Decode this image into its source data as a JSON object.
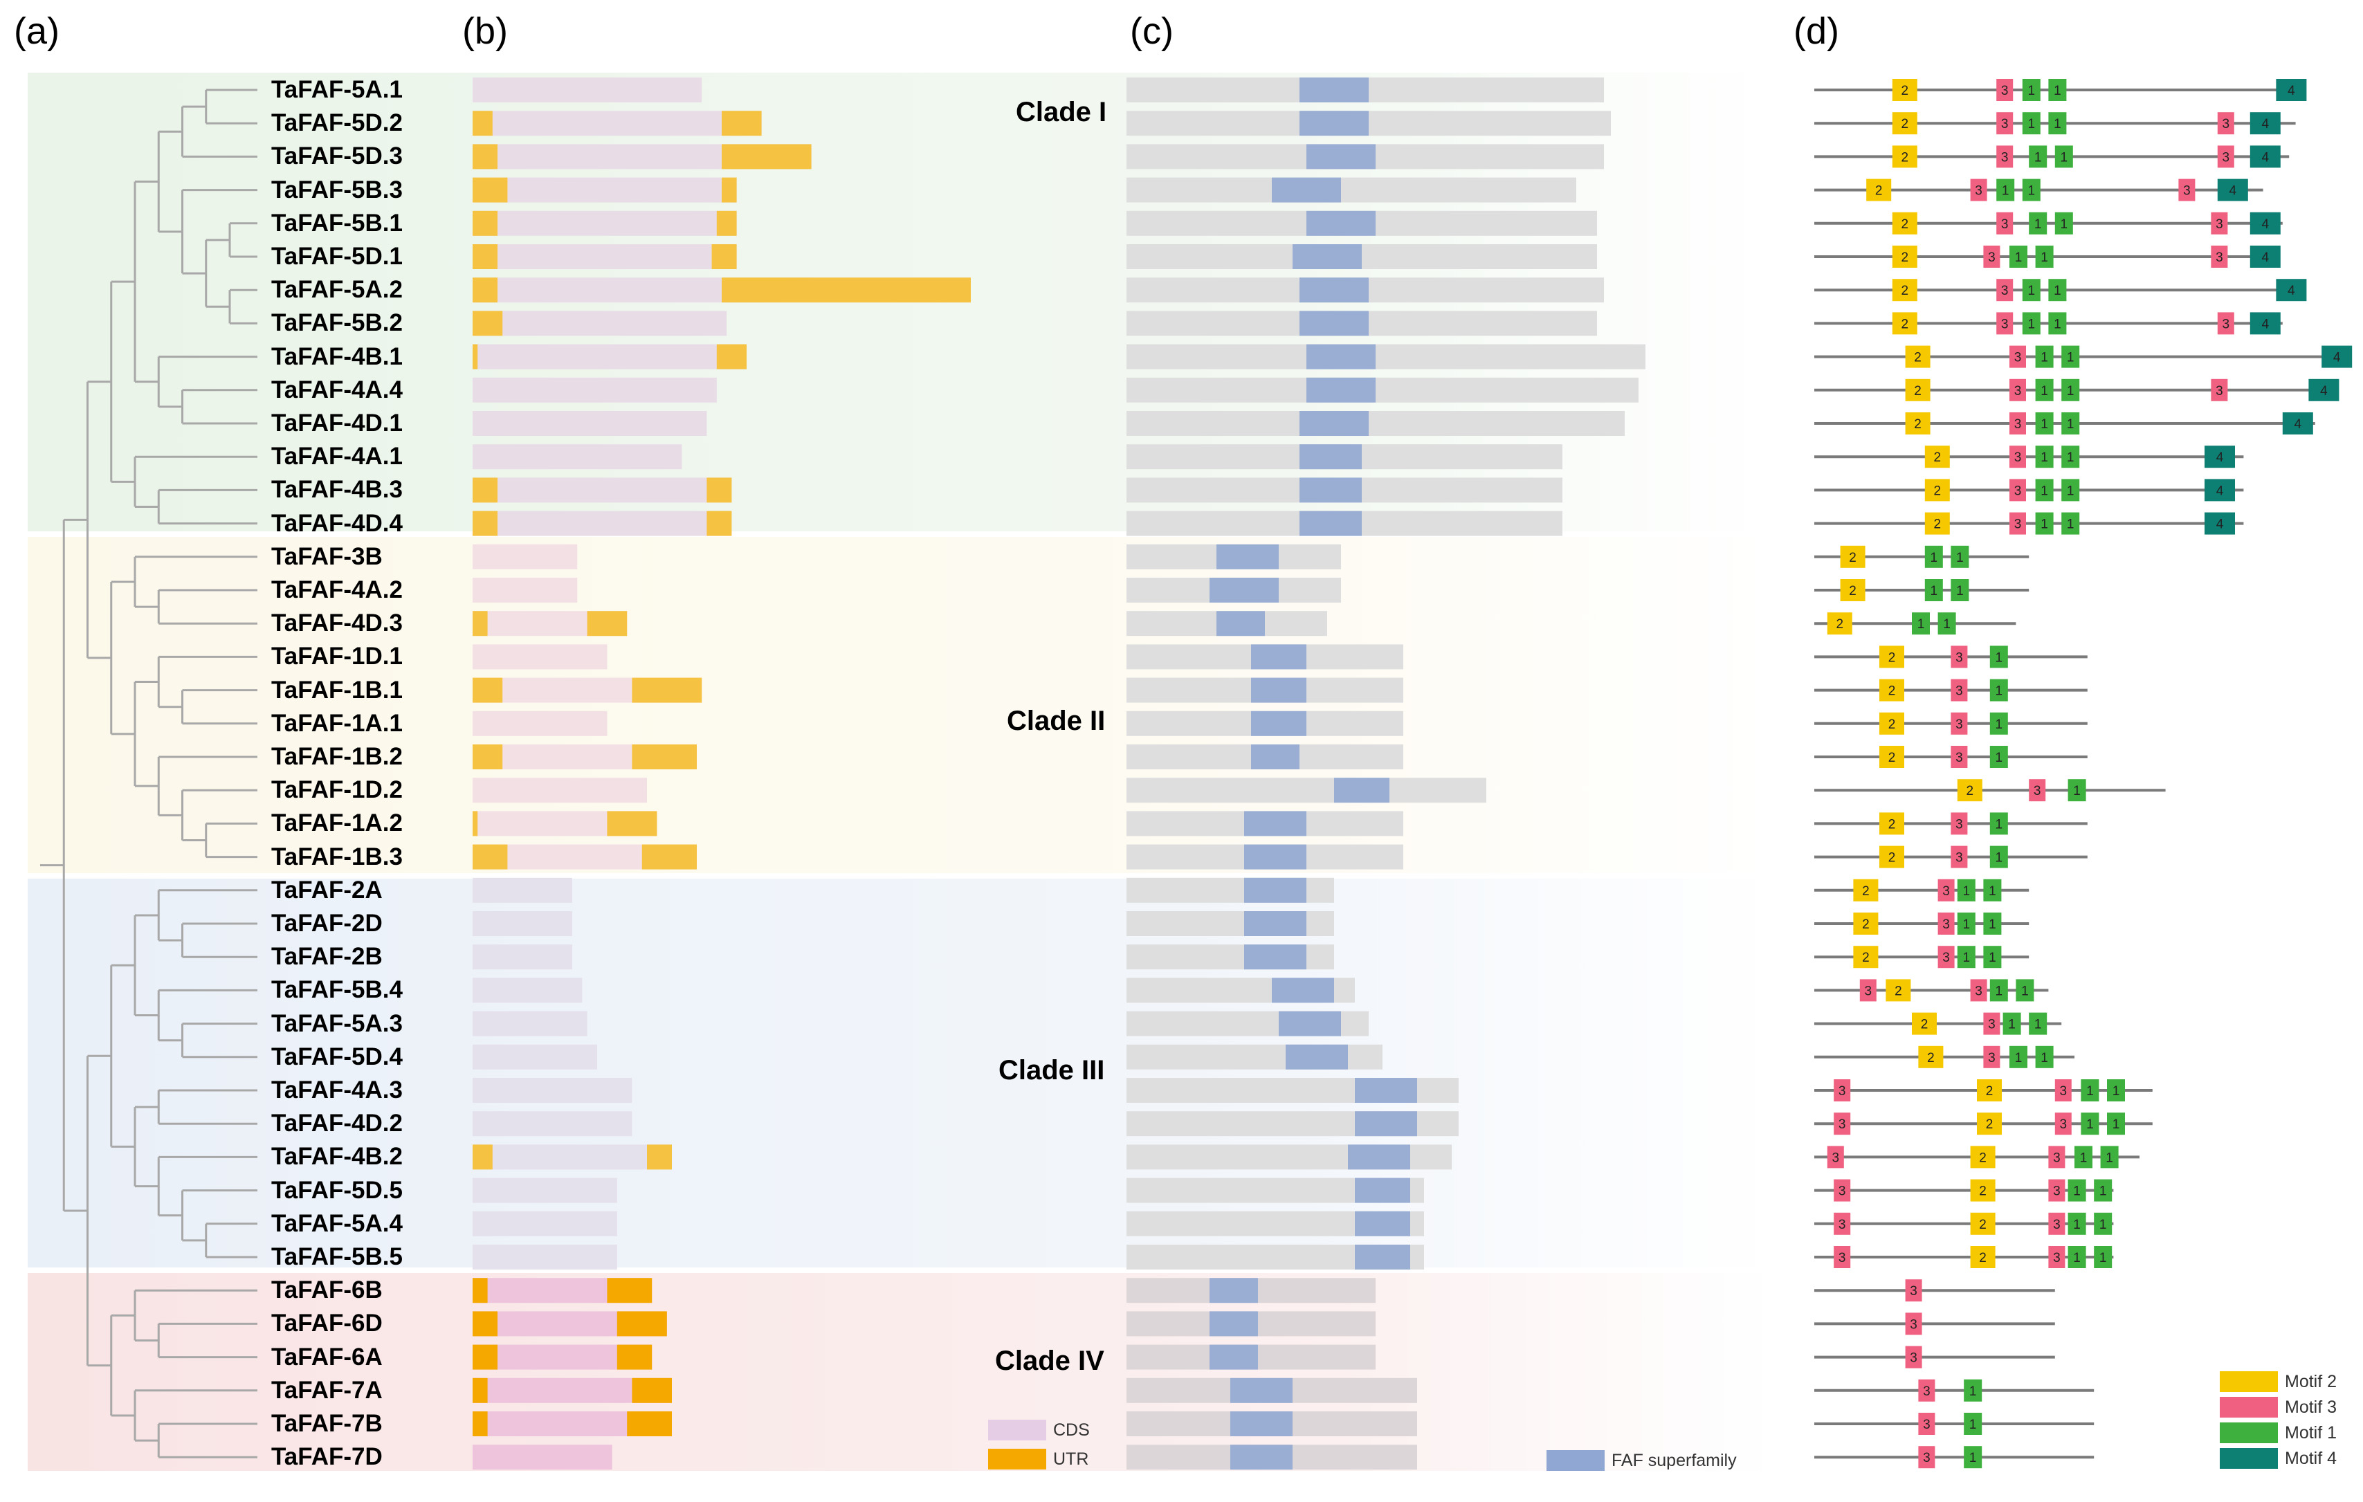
{
  "panels": {
    "a": "(a)",
    "b": "(b)",
    "c": "(c)",
    "d": "(d)"
  },
  "clades": [
    {
      "name": "Clade I",
      "color": "#eaf4e8"
    },
    {
      "name": "Clade II",
      "color": "#fcf8ea"
    },
    {
      "name": "Clade III",
      "color": "#eaf0f8"
    },
    {
      "name": "Clade IV",
      "color": "#f9e4e4"
    }
  ],
  "genes": [
    {
      "name": "TaFAF-5A.1",
      "clade": 0,
      "len": 46,
      "utr5": 0,
      "utr3": 0,
      "prot": 69,
      "dom": [
        25,
        35
      ],
      "motifs": [
        [
          "2",
          12
        ],
        [
          "3",
          28
        ],
        [
          "1",
          32
        ],
        [
          "1",
          36
        ],
        [
          "4",
          71
        ]
      ],
      "dlen": 73
    },
    {
      "name": "TaFAF-5D.2",
      "clade": 0,
      "len": 58,
      "utr5": 4,
      "utr3": 8,
      "prot": 70,
      "dom": [
        25,
        35
      ],
      "motifs": [
        [
          "2",
          12
        ],
        [
          "3",
          28
        ],
        [
          "1",
          32
        ],
        [
          "1",
          36
        ],
        [
          "3",
          62
        ],
        [
          "4",
          67
        ]
      ],
      "dlen": 74
    },
    {
      "name": "TaFAF-5D.3",
      "clade": 0,
      "len": 68,
      "utr5": 5,
      "utr3": 18,
      "prot": 69,
      "dom": [
        26,
        36
      ],
      "motifs": [
        [
          "2",
          12
        ],
        [
          "3",
          28
        ],
        [
          "1",
          33
        ],
        [
          "1",
          37
        ],
        [
          "3",
          62
        ],
        [
          "4",
          67
        ]
      ],
      "dlen": 73
    },
    {
      "name": "TaFAF-5B.3",
      "clade": 0,
      "len": 53,
      "utr5": 7,
      "utr3": 3,
      "prot": 65,
      "dom": [
        21,
        31
      ],
      "motifs": [
        [
          "2",
          8
        ],
        [
          "3",
          24
        ],
        [
          "1",
          28
        ],
        [
          "1",
          32
        ],
        [
          "3",
          56
        ],
        [
          "4",
          62
        ]
      ],
      "dlen": 69
    },
    {
      "name": "TaFAF-5B.1",
      "clade": 0,
      "len": 53,
      "utr5": 5,
      "utr3": 4,
      "prot": 68,
      "dom": [
        26,
        36
      ],
      "motifs": [
        [
          "2",
          12
        ],
        [
          "3",
          28
        ],
        [
          "1",
          33
        ],
        [
          "1",
          37
        ],
        [
          "3",
          61
        ],
        [
          "4",
          67
        ]
      ],
      "dlen": 72
    },
    {
      "name": "TaFAF-5D.1",
      "clade": 0,
      "len": 53,
      "utr5": 5,
      "utr3": 5,
      "prot": 68,
      "dom": [
        24,
        34
      ],
      "motifs": [
        [
          "2",
          12
        ],
        [
          "3",
          26
        ],
        [
          "1",
          30
        ],
        [
          "1",
          34
        ],
        [
          "3",
          61
        ],
        [
          "4",
          67
        ]
      ],
      "dlen": 71
    },
    {
      "name": "TaFAF-5A.2",
      "clade": 0,
      "len": 100,
      "utr5": 5,
      "utr3": 50,
      "prot": 69,
      "dom": [
        25,
        35
      ],
      "motifs": [
        [
          "2",
          12
        ],
        [
          "3",
          28
        ],
        [
          "1",
          32
        ],
        [
          "1",
          36
        ],
        [
          "4",
          71
        ]
      ],
      "dlen": 73
    },
    {
      "name": "TaFAF-5B.2",
      "clade": 0,
      "len": 51,
      "utr5": 6,
      "utr3": 0,
      "prot": 68,
      "dom": [
        25,
        35
      ],
      "motifs": [
        [
          "2",
          12
        ],
        [
          "3",
          28
        ],
        [
          "1",
          32
        ],
        [
          "1",
          36
        ],
        [
          "3",
          62
        ],
        [
          "4",
          67
        ]
      ],
      "dlen": 72
    },
    {
      "name": "TaFAF-4B.1",
      "clade": 0,
      "len": 55,
      "utr5": 1,
      "utr3": 6,
      "prot": 75,
      "dom": [
        26,
        36
      ],
      "motifs": [
        [
          "2",
          14
        ],
        [
          "3",
          30
        ],
        [
          "1",
          34
        ],
        [
          "1",
          38
        ],
        [
          "4",
          78
        ]
      ],
      "dlen": 80
    },
    {
      "name": "TaFAF-4A.4",
      "clade": 0,
      "len": 49,
      "utr5": 0,
      "utr3": 0,
      "prot": 74,
      "dom": [
        26,
        36
      ],
      "motifs": [
        [
          "2",
          14
        ],
        [
          "3",
          30
        ],
        [
          "1",
          34
        ],
        [
          "1",
          38
        ],
        [
          "3",
          61
        ],
        [
          "4",
          76
        ]
      ],
      "dlen": 79
    },
    {
      "name": "TaFAF-4D.1",
      "clade": 0,
      "len": 47,
      "utr5": 0,
      "utr3": 0,
      "prot": 72,
      "dom": [
        25,
        35
      ],
      "motifs": [
        [
          "2",
          14
        ],
        [
          "3",
          30
        ],
        [
          "1",
          34
        ],
        [
          "1",
          38
        ],
        [
          "4",
          72
        ]
      ],
      "dlen": 77
    },
    {
      "name": "TaFAF-4A.1",
      "clade": 0,
      "len": 42,
      "utr5": 0,
      "utr3": 0,
      "prot": 63,
      "dom": [
        25,
        34
      ],
      "motifs": [
        [
          "2",
          17
        ],
        [
          "3",
          30
        ],
        [
          "1",
          34
        ],
        [
          "1",
          38
        ],
        [
          "4",
          60
        ]
      ],
      "dlen": 66
    },
    {
      "name": "TaFAF-4B.3",
      "clade": 0,
      "len": 52,
      "utr5": 5,
      "utr3": 5,
      "prot": 63,
      "dom": [
        25,
        34
      ],
      "motifs": [
        [
          "2",
          17
        ],
        [
          "3",
          30
        ],
        [
          "1",
          34
        ],
        [
          "1",
          38
        ],
        [
          "4",
          60
        ]
      ],
      "dlen": 66
    },
    {
      "name": "TaFAF-4D.4",
      "clade": 0,
      "len": 52,
      "utr5": 5,
      "utr3": 5,
      "prot": 63,
      "dom": [
        25,
        34
      ],
      "motifs": [
        [
          "2",
          17
        ],
        [
          "3",
          30
        ],
        [
          "1",
          34
        ],
        [
          "1",
          38
        ],
        [
          "4",
          60
        ]
      ],
      "dlen": 66
    },
    {
      "name": "TaFAF-3B",
      "clade": 1,
      "len": 21,
      "utr5": 0,
      "utr3": 0,
      "prot": 31,
      "dom": [
        13,
        22
      ],
      "motifs": [
        [
          "2",
          4
        ],
        [
          "1",
          17
        ],
        [
          "1",
          21
        ]
      ],
      "dlen": 33
    },
    {
      "name": "TaFAF-4A.2",
      "clade": 1,
      "len": 21,
      "utr5": 0,
      "utr3": 0,
      "prot": 31,
      "dom": [
        12,
        22
      ],
      "motifs": [
        [
          "2",
          4
        ],
        [
          "1",
          17
        ],
        [
          "1",
          21
        ]
      ],
      "dlen": 33
    },
    {
      "name": "TaFAF-4D.3",
      "clade": 1,
      "len": 31,
      "utr5": 3,
      "utr3": 8,
      "prot": 29,
      "dom": [
        13,
        20
      ],
      "motifs": [
        [
          "2",
          2
        ],
        [
          "1",
          15
        ],
        [
          "1",
          19
        ]
      ],
      "dlen": 31
    },
    {
      "name": "TaFAF-1D.1",
      "clade": 1,
      "len": 27,
      "utr5": 0,
      "utr3": 0,
      "prot": 40,
      "dom": [
        18,
        26
      ],
      "motifs": [
        [
          "2",
          10
        ],
        [
          "3",
          21
        ],
        [
          "1",
          27
        ]
      ],
      "dlen": 42
    },
    {
      "name": "TaFAF-1B.1",
      "clade": 1,
      "len": 46,
      "utr5": 6,
      "utr3": 14,
      "prot": 40,
      "dom": [
        18,
        26
      ],
      "motifs": [
        [
          "2",
          10
        ],
        [
          "3",
          21
        ],
        [
          "1",
          27
        ]
      ],
      "dlen": 42
    },
    {
      "name": "TaFAF-1A.1",
      "clade": 1,
      "len": 27,
      "utr5": 0,
      "utr3": 0,
      "prot": 40,
      "dom": [
        18,
        26
      ],
      "motifs": [
        [
          "2",
          10
        ],
        [
          "3",
          21
        ],
        [
          "1",
          27
        ]
      ],
      "dlen": 42
    },
    {
      "name": "TaFAF-1B.2",
      "clade": 1,
      "len": 45,
      "utr5": 6,
      "utr3": 13,
      "prot": 40,
      "dom": [
        18,
        25
      ],
      "motifs": [
        [
          "2",
          10
        ],
        [
          "3",
          21
        ],
        [
          "1",
          27
        ]
      ],
      "dlen": 42
    },
    {
      "name": "TaFAF-1D.2",
      "clade": 1,
      "len": 35,
      "utr5": 0,
      "utr3": 0,
      "prot": 52,
      "dom": [
        30,
        38
      ],
      "motifs": [
        [
          "2",
          22
        ],
        [
          "3",
          33
        ],
        [
          "1",
          39
        ]
      ],
      "dlen": 54
    },
    {
      "name": "TaFAF-1A.2",
      "clade": 1,
      "len": 37,
      "utr5": 1,
      "utr3": 10,
      "prot": 40,
      "dom": [
        17,
        26
      ],
      "motifs": [
        [
          "2",
          10
        ],
        [
          "3",
          21
        ],
        [
          "1",
          27
        ]
      ],
      "dlen": 42
    },
    {
      "name": "TaFAF-1B.3",
      "clade": 1,
      "len": 45,
      "utr5": 7,
      "utr3": 11,
      "prot": 40,
      "dom": [
        17,
        26
      ],
      "motifs": [
        [
          "2",
          10
        ],
        [
          "3",
          21
        ],
        [
          "1",
          27
        ]
      ],
      "dlen": 42
    },
    {
      "name": "TaFAF-2A",
      "clade": 2,
      "len": 20,
      "utr5": 0,
      "utr3": 0,
      "prot": 30,
      "dom": [
        17,
        26
      ],
      "motifs": [
        [
          "2",
          6
        ],
        [
          "3",
          19
        ],
        [
          "1",
          22
        ],
        [
          "1",
          26
        ]
      ],
      "dlen": 33
    },
    {
      "name": "TaFAF-2D",
      "clade": 2,
      "len": 20,
      "utr5": 0,
      "utr3": 0,
      "prot": 30,
      "dom": [
        17,
        26
      ],
      "motifs": [
        [
          "2",
          6
        ],
        [
          "3",
          19
        ],
        [
          "1",
          22
        ],
        [
          "1",
          26
        ]
      ],
      "dlen": 33
    },
    {
      "name": "TaFAF-2B",
      "clade": 2,
      "len": 20,
      "utr5": 0,
      "utr3": 0,
      "prot": 30,
      "dom": [
        17,
        26
      ],
      "motifs": [
        [
          "2",
          6
        ],
        [
          "3",
          19
        ],
        [
          "1",
          22
        ],
        [
          "1",
          26
        ]
      ],
      "dlen": 33
    },
    {
      "name": "TaFAF-5B.4",
      "clade": 2,
      "len": 22,
      "utr5": 0,
      "utr3": 0,
      "prot": 33,
      "dom": [
        21,
        30
      ],
      "motifs": [
        [
          "3",
          7
        ],
        [
          "2",
          11
        ],
        [
          "3",
          24
        ],
        [
          "1",
          27
        ],
        [
          "1",
          31
        ]
      ],
      "dlen": 36
    },
    {
      "name": "TaFAF-5A.3",
      "clade": 2,
      "len": 23,
      "utr5": 0,
      "utr3": 0,
      "prot": 35,
      "dom": [
        22,
        31
      ],
      "motifs": [
        [
          "2",
          15
        ],
        [
          "3",
          26
        ],
        [
          "1",
          29
        ],
        [
          "1",
          33
        ]
      ],
      "dlen": 38
    },
    {
      "name": "TaFAF-5D.4",
      "clade": 2,
      "len": 25,
      "utr5": 0,
      "utr3": 0,
      "prot": 37,
      "dom": [
        23,
        32
      ],
      "motifs": [
        [
          "2",
          16
        ],
        [
          "3",
          26
        ],
        [
          "1",
          30
        ],
        [
          "1",
          34
        ]
      ],
      "dlen": 40
    },
    {
      "name": "TaFAF-4A.3",
      "clade": 2,
      "len": 32,
      "utr5": 0,
      "utr3": 0,
      "prot": 48,
      "dom": [
        33,
        42
      ],
      "motifs": [
        [
          "3",
          3
        ],
        [
          "2",
          25
        ],
        [
          "3",
          37
        ],
        [
          "1",
          41
        ],
        [
          "1",
          45
        ]
      ],
      "dlen": 52
    },
    {
      "name": "TaFAF-4D.2",
      "clade": 2,
      "len": 32,
      "utr5": 0,
      "utr3": 0,
      "prot": 48,
      "dom": [
        33,
        42
      ],
      "motifs": [
        [
          "3",
          3
        ],
        [
          "2",
          25
        ],
        [
          "3",
          37
        ],
        [
          "1",
          41
        ],
        [
          "1",
          45
        ]
      ],
      "dlen": 52
    },
    {
      "name": "TaFAF-4B.2",
      "clade": 2,
      "len": 40,
      "utr5": 4,
      "utr3": 5,
      "prot": 47,
      "dom": [
        32,
        41
      ],
      "motifs": [
        [
          "3",
          2
        ],
        [
          "2",
          24
        ],
        [
          "3",
          36
        ],
        [
          "1",
          40
        ],
        [
          "1",
          44
        ]
      ],
      "dlen": 50
    },
    {
      "name": "TaFAF-5D.5",
      "clade": 2,
      "len": 29,
      "utr5": 0,
      "utr3": 0,
      "prot": 43,
      "dom": [
        33,
        41
      ],
      "motifs": [
        [
          "3",
          3
        ],
        [
          "2",
          24
        ],
        [
          "3",
          36
        ],
        [
          "1",
          39
        ],
        [
          "1",
          43
        ]
      ],
      "dlen": 46
    },
    {
      "name": "TaFAF-5A.4",
      "clade": 2,
      "len": 29,
      "utr5": 0,
      "utr3": 0,
      "prot": 43,
      "dom": [
        33,
        41
      ],
      "motifs": [
        [
          "3",
          3
        ],
        [
          "2",
          24
        ],
        [
          "3",
          36
        ],
        [
          "1",
          39
        ],
        [
          "1",
          43
        ]
      ],
      "dlen": 46
    },
    {
      "name": "TaFAF-5B.5",
      "clade": 2,
      "len": 29,
      "utr5": 0,
      "utr3": 0,
      "prot": 43,
      "dom": [
        33,
        41
      ],
      "motifs": [
        [
          "3",
          3
        ],
        [
          "2",
          24
        ],
        [
          "3",
          36
        ],
        [
          "1",
          39
        ],
        [
          "1",
          43
        ]
      ],
      "dlen": 46
    },
    {
      "name": "TaFAF-6B",
      "clade": 3,
      "len": 36,
      "utr5": 3,
      "utr3": 9,
      "prot": 36,
      "dom": [
        12,
        19
      ],
      "motifs": [
        [
          "3",
          14
        ]
      ],
      "dlen": 37
    },
    {
      "name": "TaFAF-6D",
      "clade": 3,
      "len": 39,
      "utr5": 5,
      "utr3": 10,
      "prot": 36,
      "dom": [
        12,
        19
      ],
      "motifs": [
        [
          "3",
          14
        ]
      ],
      "dlen": 37
    },
    {
      "name": "TaFAF-6A",
      "clade": 3,
      "len": 36,
      "utr5": 5,
      "utr3": 7,
      "prot": 36,
      "dom": [
        12,
        19
      ],
      "motifs": [
        [
          "3",
          14
        ]
      ],
      "dlen": 37
    },
    {
      "name": "TaFAF-7A",
      "clade": 3,
      "len": 40,
      "utr5": 3,
      "utr3": 8,
      "prot": 42,
      "dom": [
        15,
        24
      ],
      "motifs": [
        [
          "3",
          16
        ],
        [
          "1",
          23
        ]
      ],
      "dlen": 43
    },
    {
      "name": "TaFAF-7B",
      "clade": 3,
      "len": 40,
      "utr5": 3,
      "utr3": 9,
      "prot": 42,
      "dom": [
        15,
        24
      ],
      "motifs": [
        [
          "3",
          16
        ],
        [
          "1",
          23
        ]
      ],
      "dlen": 43
    },
    {
      "name": "TaFAF-7D",
      "clade": 3,
      "len": 28,
      "utr5": 0,
      "utr3": 0,
      "prot": 42,
      "dom": [
        15,
        24
      ],
      "motifs": [
        [
          "3",
          16
        ],
        [
          "1",
          23
        ]
      ],
      "dlen": 43
    }
  ],
  "legend_b": [
    {
      "label": "CDS",
      "color": "#e6cde6"
    },
    {
      "label": "UTR",
      "color": "#f5a800"
    }
  ],
  "legend_c": {
    "label": "FAF superfamily",
    "color": "#8fa7d2"
  },
  "legend_d": [
    {
      "label": "Motif 2",
      "color": "#f5c800"
    },
    {
      "label": "Motif 3",
      "color": "#f06080"
    },
    {
      "label": "Motif 1",
      "color": "#3db03d"
    },
    {
      "label": "Motif 4",
      "color": "#0d7f73"
    }
  ],
  "colors": {
    "utr": "#f5c242",
    "utr_clade4": "#f5a800",
    "cds": [
      "#e8dde6",
      "#f3e0e4",
      "#e4e0ec",
      "#edc4dc"
    ],
    "protein_bg": "#dedede",
    "domain": "#9aaed4",
    "tree_line": "#a8a8a8",
    "motif_line": "#7a7a7a"
  }
}
